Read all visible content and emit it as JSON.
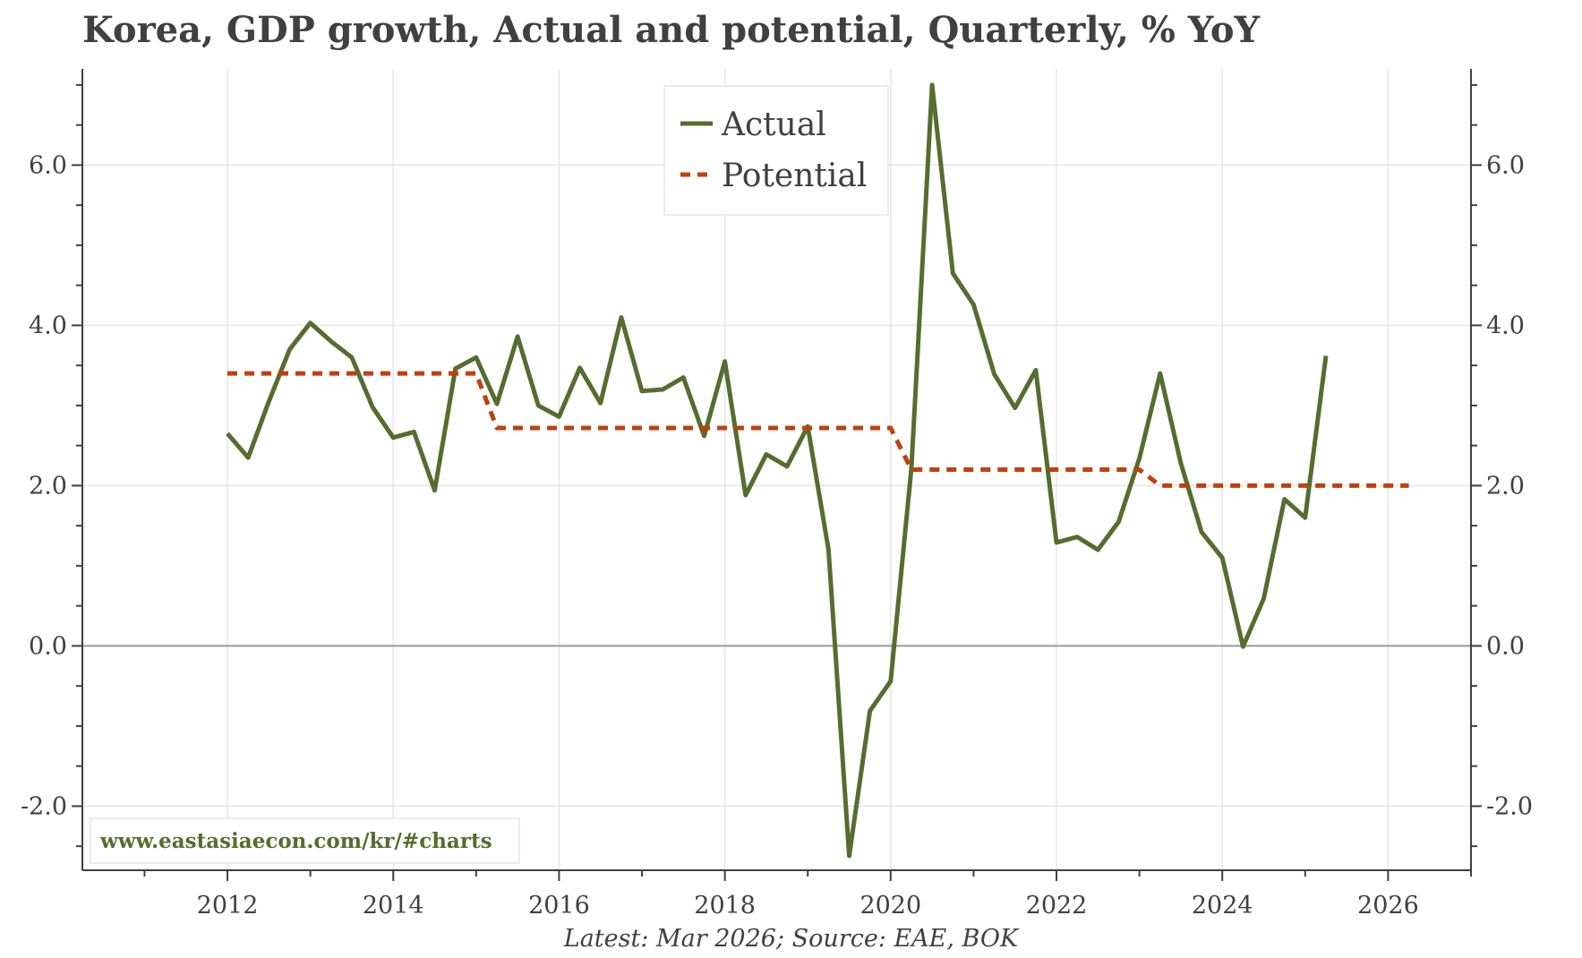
{
  "chart_data": {
    "type": "line",
    "title": "Korea, GDP growth, Actual and potential, Quarterly, % YoY",
    "source_note": "Latest: Mar 2026; Source: EAE, BOK",
    "watermark": "www.eastasiaecon.com/kr/#charts",
    "x_axis": {
      "range": [
        2010.25,
        2027.0
      ],
      "ticks": [
        2012,
        2014,
        2016,
        2018,
        2020,
        2022,
        2024,
        2026
      ],
      "tick_labels": [
        "2012",
        "2014",
        "2016",
        "2018",
        "2020",
        "2022",
        "2024",
        "2026"
      ]
    },
    "y_axis": {
      "range": [
        -2.8,
        7.2
      ],
      "ticks": [
        -2.0,
        0.0,
        2.0,
        4.0,
        6.0
      ],
      "tick_labels": [
        "-2.0",
        "0.0",
        "2.0",
        "4.0",
        "6.0"
      ],
      "right_axis_mirrored": true
    },
    "grid": true,
    "zero_line": true,
    "legend": {
      "placement": "top-center"
    },
    "colors": {
      "actual": "#536e2e",
      "potential": "#c0400f",
      "text": "#404040",
      "grid": "#e6e6e6"
    },
    "series": [
      {
        "name": "Actual",
        "style": "solid",
        "x": [
          2012.0,
          2012.25,
          2012.5,
          2012.75,
          2013.0,
          2013.25,
          2013.5,
          2013.75,
          2014.0,
          2014.25,
          2014.5,
          2014.75,
          2015.0,
          2015.25,
          2015.5,
          2015.75,
          2016.0,
          2016.25,
          2016.5,
          2016.75,
          2017.0,
          2017.25,
          2017.5,
          2017.75,
          2018.0,
          2018.25,
          2018.5,
          2018.75,
          2019.0,
          2019.25,
          2019.5,
          2019.75,
          2020.0,
          2020.25,
          2020.5,
          2020.75,
          2021.0,
          2021.25,
          2021.5,
          2021.75,
          2022.0,
          2022.25,
          2022.5,
          2022.75,
          2023.0,
          2023.25,
          2023.5,
          2023.75,
          2024.0,
          2024.25,
          2024.5,
          2024.75,
          2025.0,
          2025.25
        ],
        "y": [
          2.65,
          2.35,
          3.05,
          3.7,
          4.03,
          3.8,
          3.6,
          2.98,
          2.6,
          2.67,
          1.94,
          3.46,
          3.6,
          3.02,
          3.86,
          3.0,
          2.86,
          3.47,
          3.03,
          4.1,
          3.18,
          3.2,
          3.35,
          2.62,
          3.55,
          1.88,
          2.39,
          2.24,
          2.74,
          1.2,
          -2.62,
          -0.81,
          -0.44,
          2.22,
          7.0,
          4.65,
          4.26,
          3.39,
          2.97,
          3.44,
          1.29,
          1.36,
          1.2,
          1.55,
          2.34,
          3.4,
          2.28,
          1.42,
          1.1,
          -0.01,
          0.59,
          1.83,
          1.6,
          3.62
        ]
      },
      {
        "name": "Potential",
        "style": "dashed",
        "x": [
          2012.0,
          2015.0,
          2015.25,
          2020.0,
          2020.25,
          2023.0,
          2023.25,
          2026.25
        ],
        "y": [
          3.4,
          3.4,
          2.72,
          2.72,
          2.2,
          2.2,
          2.0,
          2.0
        ]
      }
    ]
  }
}
